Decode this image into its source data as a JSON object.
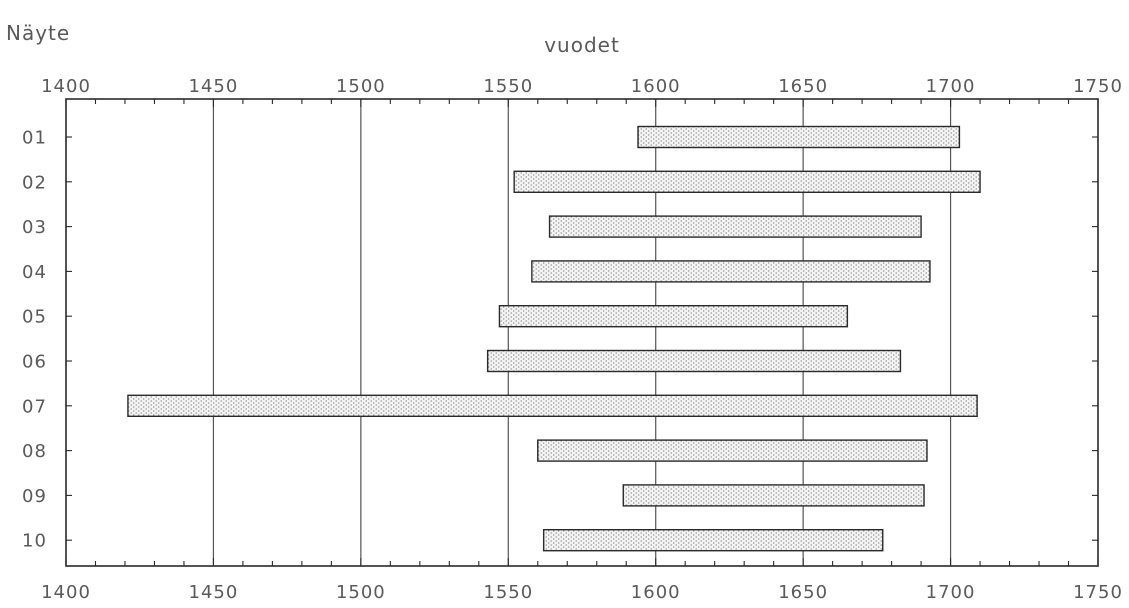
{
  "chart_data": {
    "type": "bar",
    "orientation": "horizontal-range",
    "title": "",
    "ylabel": "Näyte",
    "xlabel": "vuodet",
    "xlim": [
      1400,
      1750
    ],
    "xticks": [
      1400,
      1450,
      1500,
      1550,
      1600,
      1650,
      1700,
      1750
    ],
    "grid": true,
    "categories": [
      "01",
      "02",
      "03",
      "04",
      "05",
      "06",
      "07",
      "08",
      "09",
      "10"
    ],
    "ranges": [
      {
        "start": 1594,
        "end": 1703
      },
      {
        "start": 1552,
        "end": 1710
      },
      {
        "start": 1564,
        "end": 1690
      },
      {
        "start": 1558,
        "end": 1693
      },
      {
        "start": 1547,
        "end": 1665
      },
      {
        "start": 1543,
        "end": 1683
      },
      {
        "start": 1421,
        "end": 1709
      },
      {
        "start": 1560,
        "end": 1692
      },
      {
        "start": 1589,
        "end": 1691
      },
      {
        "start": 1562,
        "end": 1677
      }
    ]
  }
}
